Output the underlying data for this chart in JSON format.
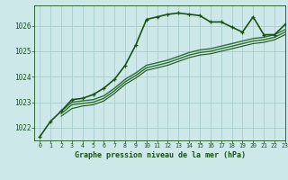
{
  "title": "Graphe pression niveau de la mer (hPa)",
  "background_color": "#cde8e8",
  "grid_color": "#a8cccc",
  "line_color_dark": "#1a5218",
  "xlim": [
    -0.5,
    23
  ],
  "ylim": [
    1021.5,
    1026.8
  ],
  "yticks": [
    1022,
    1023,
    1024,
    1025,
    1026
  ],
  "xticks": [
    0,
    1,
    2,
    3,
    4,
    5,
    6,
    7,
    8,
    9,
    10,
    11,
    12,
    13,
    14,
    15,
    16,
    17,
    18,
    19,
    20,
    21,
    22,
    23
  ],
  "series": [
    {
      "x": [
        0,
        1,
        2,
        3,
        4,
        5,
        6,
        7,
        8,
        9,
        10,
        11,
        12,
        13,
        14,
        15,
        16,
        17,
        18,
        19,
        20,
        21,
        22,
        23
      ],
      "y": [
        1021.65,
        1022.25,
        1022.65,
        1023.1,
        1023.15,
        1023.3,
        1023.55,
        1023.9,
        1024.45,
        1025.25,
        1026.25,
        1026.35,
        1026.45,
        1026.5,
        1026.45,
        1026.4,
        1026.15,
        1026.15,
        1025.95,
        1025.75,
        1026.35,
        1025.65,
        1025.65,
        1026.05
      ],
      "color": "#1a5218",
      "lw": 1.2,
      "marker": "+",
      "ms": 3.5
    },
    {
      "x": [
        2,
        3,
        4,
        5,
        6,
        7,
        8,
        9,
        10,
        11,
        12,
        13,
        14,
        15,
        16,
        17,
        18,
        19,
        20,
        21,
        22,
        23
      ],
      "y": [
        1022.65,
        1023.0,
        1023.05,
        1023.1,
        1023.25,
        1023.55,
        1023.9,
        1024.15,
        1024.45,
        1024.55,
        1024.65,
        1024.8,
        1024.95,
        1025.05,
        1025.1,
        1025.2,
        1025.3,
        1025.4,
        1025.5,
        1025.55,
        1025.65,
        1025.85
      ],
      "color": "#2d7030",
      "lw": 1.0,
      "marker": null,
      "ms": 0
    },
    {
      "x": [
        2,
        3,
        4,
        5,
        6,
        7,
        8,
        9,
        10,
        11,
        12,
        13,
        14,
        15,
        16,
        17,
        18,
        19,
        20,
        21,
        22,
        23
      ],
      "y": [
        1022.55,
        1022.9,
        1022.95,
        1023.0,
        1023.15,
        1023.45,
        1023.8,
        1024.05,
        1024.35,
        1024.45,
        1024.55,
        1024.7,
        1024.85,
        1024.95,
        1025.0,
        1025.1,
        1025.2,
        1025.3,
        1025.4,
        1025.45,
        1025.55,
        1025.75
      ],
      "color": "#2d7030",
      "lw": 1.0,
      "marker": null,
      "ms": 0
    },
    {
      "x": [
        2,
        3,
        4,
        5,
        6,
        7,
        8,
        9,
        10,
        11,
        12,
        13,
        14,
        15,
        16,
        17,
        18,
        19,
        20,
        21,
        22,
        23
      ],
      "y": [
        1022.45,
        1022.75,
        1022.85,
        1022.9,
        1023.05,
        1023.35,
        1023.7,
        1023.95,
        1024.25,
        1024.35,
        1024.45,
        1024.6,
        1024.75,
        1024.85,
        1024.9,
        1025.0,
        1025.1,
        1025.2,
        1025.3,
        1025.35,
        1025.45,
        1025.65
      ],
      "color": "#1a5218",
      "lw": 0.8,
      "marker": null,
      "ms": 0
    }
  ]
}
